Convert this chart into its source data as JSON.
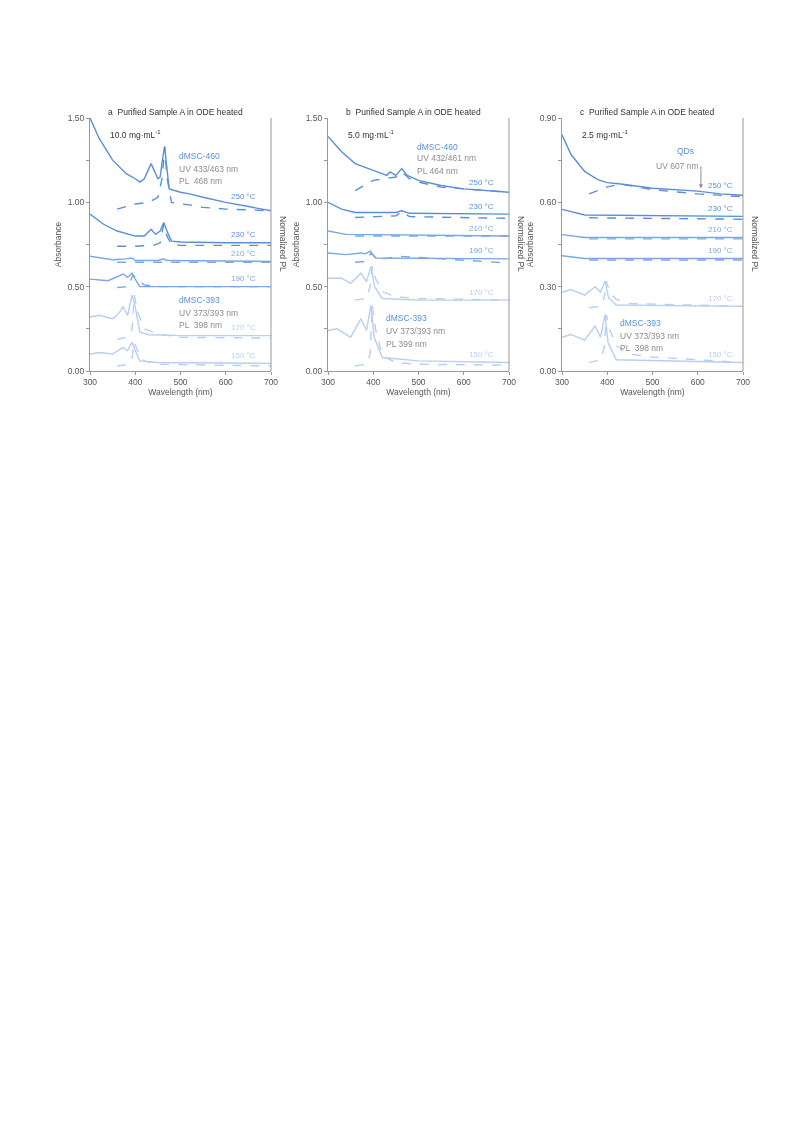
{
  "chart_data": [
    {
      "type": "line",
      "title": "a  Purified Sample A in ODE heated",
      "subtitle": "10.0 mg·mL$^{-1}$",
      "xlabel": "Wavelength (nm)",
      "ylabel": "Absorbance",
      "y2label": "Normalized PL",
      "xlim": [
        300,
        700
      ],
      "xticks": [
        300,
        400,
        500,
        600,
        700
      ],
      "ylim": [
        0,
        1.5
      ],
      "yticks": [
        {
          "value": 0,
          "label": "0.00"
        },
        {
          "value": 0.25,
          "label": null
        },
        {
          "value": 0.5,
          "label": "0.50"
        },
        {
          "value": 0.75,
          "label": null
        },
        {
          "value": 1,
          "label": "1.00"
        },
        {
          "value": 1.25,
          "label": null
        },
        {
          "value": 1.5,
          "label": "1.50"
        }
      ],
      "grid": false,
      "annotations": [
        "dMSC-460",
        "UV 433/463 nm",
        "PL  468 nm",
        "dMSC-393",
        "UV 373/393 nm",
        "PL  398 nm",
        {
          "text": "250 °C",
          "x": 640,
          "y": 0.99
        },
        {
          "text": "230 °C",
          "x": 640,
          "y": 0.76
        },
        {
          "text": "210 °C",
          "x": 640,
          "y": 0.65
        },
        {
          "text": "190 °C",
          "x": 640,
          "y": 0.5
        },
        {
          "text": "170 °C",
          "x": 640,
          "y": 0.21
        },
        {
          "text": "150 °C",
          "x": 640,
          "y": 0.045
        }
      ],
      "series": [
        {
          "color": "#5a8fd8",
          "line_style": "solid",
          "x": [
            300,
            320,
            350,
            380,
            400,
            410,
            420,
            430,
            435,
            440,
            450,
            455,
            460,
            465,
            470,
            475,
            500,
            520,
            550,
            600,
            650,
            700
          ],
          "values": [
            1.5,
            1.38,
            1.25,
            1.17,
            1.14,
            1.12,
            1.14,
            1.2,
            1.23,
            1.2,
            1.14,
            1.15,
            1.25,
            1.33,
            1.2,
            1.08,
            1.06,
            1.05,
            1.03,
            1.0,
            0.975,
            0.95
          ]
        },
        {
          "color": "#5a8fd8",
          "line_style": "dashed",
          "x": [
            360,
            400,
            430,
            450,
            460,
            465,
            470,
            480,
            500,
            520,
            550,
            600,
            650,
            700
          ],
          "values": [
            0.96,
            0.99,
            1.0,
            1.03,
            1.15,
            1.33,
            1.15,
            1.0,
            0.99,
            0.985,
            0.97,
            0.96,
            0.955,
            0.95
          ]
        },
        {
          "color": "#5a8fd8",
          "line_style": "solid",
          "x": [
            300,
            330,
            360,
            400,
            420,
            435,
            445,
            455,
            463,
            470,
            480,
            500,
            600,
            700
          ],
          "values": [
            0.93,
            0.87,
            0.83,
            0.8,
            0.8,
            0.84,
            0.81,
            0.83,
            0.88,
            0.83,
            0.77,
            0.765,
            0.76,
            0.76
          ]
        },
        {
          "color": "#5a8fd8",
          "line_style": "dashed",
          "x": [
            360,
            400,
            440,
            455,
            463,
            470,
            480,
            500,
            700
          ],
          "values": [
            0.74,
            0.74,
            0.745,
            0.76,
            0.87,
            0.8,
            0.75,
            0.745,
            0.745
          ]
        },
        {
          "color": "#7ba7e3",
          "line_style": "solid",
          "x": [
            300,
            350,
            380,
            393,
            400,
            450,
            463,
            470,
            700
          ],
          "values": [
            0.68,
            0.66,
            0.665,
            0.67,
            0.655,
            0.655,
            0.665,
            0.655,
            0.65
          ]
        },
        {
          "color": "#7ba7e3",
          "line_style": "dashed",
          "x": [
            360,
            400,
            700
          ],
          "values": [
            0.645,
            0.645,
            0.645
          ]
        },
        {
          "color": "#7ba7e3",
          "line_style": "solid",
          "x": [
            300,
            340,
            373,
            383,
            393,
            400,
            410,
            450,
            700
          ],
          "values": [
            0.545,
            0.535,
            0.575,
            0.555,
            0.58,
            0.545,
            0.5,
            0.5,
            0.5
          ]
        },
        {
          "color": "#7ba7e3",
          "line_style": "dashed",
          "x": [
            360,
            385,
            395,
            405,
            420,
            460,
            700
          ],
          "values": [
            0.495,
            0.5,
            0.57,
            0.54,
            0.51,
            0.5,
            0.5
          ]
        },
        {
          "color": "#b7cff0",
          "line_style": "solid",
          "x": [
            300,
            320,
            350,
            360,
            373,
            383,
            393,
            400,
            410,
            430,
            500,
            700
          ],
          "values": [
            0.32,
            0.33,
            0.31,
            0.33,
            0.38,
            0.33,
            0.45,
            0.38,
            0.23,
            0.215,
            0.21,
            0.21
          ]
        },
        {
          "color": "#b7cff0",
          "line_style": "dashed",
          "x": [
            360,
            385,
            393,
            398,
            405,
            420,
            450,
            500,
            700
          ],
          "values": [
            0.19,
            0.2,
            0.25,
            0.45,
            0.35,
            0.25,
            0.22,
            0.2,
            0.195
          ]
        },
        {
          "color": "#b7cff0",
          "line_style": "solid",
          "x": [
            300,
            320,
            350,
            373,
            383,
            393,
            400,
            410,
            450,
            700
          ],
          "values": [
            0.1,
            0.11,
            0.1,
            0.14,
            0.12,
            0.17,
            0.12,
            0.06,
            0.05,
            0.045
          ]
        },
        {
          "color": "#b7cff0",
          "line_style": "dashed",
          "x": [
            360,
            385,
            393,
            398,
            405,
            420,
            450,
            700
          ],
          "values": [
            0.03,
            0.04,
            0.08,
            0.17,
            0.12,
            0.06,
            0.04,
            0.03
          ]
        }
      ]
    },
    {
      "type": "line",
      "title": "b  Purified Sample A in ODE heated",
      "subtitle": "5.0 mg·mL$^{-1}$",
      "xlabel": "Wavelength (nm)",
      "ylabel": "Absorbance",
      "y2label": "Normalized PL",
      "xlim": [
        300,
        700
      ],
      "xticks": [
        300,
        400,
        500,
        600,
        700
      ],
      "ylim": [
        0,
        1.5
      ],
      "yticks": [
        {
          "value": 0,
          "label": "0.00"
        },
        {
          "value": 0.25,
          "label": null
        },
        {
          "value": 0.5,
          "label": "0.50"
        },
        {
          "value": 0.75,
          "label": null
        },
        {
          "value": 1,
          "label": "1.00"
        },
        {
          "value": 1.25,
          "label": null
        },
        {
          "value": 1.5,
          "label": "1.50"
        }
      ],
      "grid": false,
      "annotations": [
        "dMSC-460",
        "UV 432/461 nm",
        "PL 464 nm",
        "dMSC-393",
        "UV 373/393 nm",
        "PL 399 nm",
        {
          "text": "250 °C",
          "x": 640,
          "y": 1.07
        },
        {
          "text": "230 °C",
          "x": 640,
          "y": 0.93
        },
        {
          "text": "210 °C",
          "x": 640,
          "y": 0.8
        },
        {
          "text": "190 °C",
          "x": 640,
          "y": 0.665
        },
        {
          "text": "170 °C",
          "x": 640,
          "y": 0.42
        },
        {
          "text": "150 °C",
          "x": 640,
          "y": 0.05
        }
      ],
      "series": [
        {
          "color": "#5a8fd8",
          "line_style": "solid",
          "x": [
            300,
            330,
            360,
            400,
            430,
            437,
            450,
            463,
            475,
            500,
            550,
            600,
            700
          ],
          "values": [
            1.39,
            1.3,
            1.23,
            1.19,
            1.16,
            1.18,
            1.16,
            1.2,
            1.16,
            1.13,
            1.1,
            1.08,
            1.06
          ]
        },
        {
          "color": "#5a8fd8",
          "line_style": "dashed",
          "x": [
            360,
            380,
            400,
            450,
            463,
            480,
            500,
            550,
            600,
            700
          ],
          "values": [
            1.07,
            1.1,
            1.13,
            1.15,
            1.18,
            1.14,
            1.12,
            1.09,
            1.08,
            1.06
          ]
        },
        {
          "color": "#5a8fd8",
          "line_style": "solid",
          "x": [
            300,
            330,
            360,
            450,
            463,
            480,
            700
          ],
          "values": [
            1.0,
            0.96,
            0.94,
            0.94,
            0.95,
            0.935,
            0.93
          ]
        },
        {
          "color": "#5a8fd8",
          "line_style": "dashed",
          "x": [
            360,
            450,
            463,
            480,
            700
          ],
          "values": [
            0.91,
            0.92,
            0.945,
            0.915,
            0.905
          ]
        },
        {
          "color": "#7ba7e3",
          "line_style": "solid",
          "x": [
            300,
            340,
            700
          ],
          "values": [
            0.83,
            0.81,
            0.8
          ]
        },
        {
          "color": "#7ba7e3",
          "line_style": "dashed",
          "x": [
            360,
            700
          ],
          "values": [
            0.8,
            0.8
          ]
        },
        {
          "color": "#7ba7e3",
          "line_style": "solid",
          "x": [
            300,
            340,
            373,
            383,
            393,
            405,
            700
          ],
          "values": [
            0.7,
            0.69,
            0.7,
            0.695,
            0.71,
            0.67,
            0.665
          ]
        },
        {
          "color": "#7ba7e3",
          "line_style": "dashed",
          "x": [
            360,
            385,
            395,
            410,
            460,
            700
          ],
          "values": [
            0.645,
            0.65,
            0.7,
            0.66,
            0.68,
            0.64
          ]
        },
        {
          "color": "#b7cff0",
          "line_style": "solid",
          "x": [
            300,
            330,
            350,
            373,
            385,
            395,
            403,
            420,
            500,
            700
          ],
          "values": [
            0.55,
            0.55,
            0.52,
            0.58,
            0.53,
            0.62,
            0.5,
            0.43,
            0.42,
            0.42
          ]
        },
        {
          "color": "#b7cff0",
          "line_style": "dashed",
          "x": [
            360,
            385,
            393,
            398,
            405,
            420,
            450,
            500,
            700
          ],
          "values": [
            0.42,
            0.43,
            0.5,
            0.62,
            0.55,
            0.47,
            0.44,
            0.43,
            0.42
          ]
        },
        {
          "color": "#b7cff0",
          "line_style": "solid",
          "x": [
            300,
            320,
            350,
            373,
            385,
            395,
            402,
            420,
            500,
            700
          ],
          "values": [
            0.24,
            0.25,
            0.2,
            0.31,
            0.24,
            0.39,
            0.2,
            0.08,
            0.06,
            0.05
          ]
        },
        {
          "color": "#b7cff0",
          "line_style": "dashed",
          "x": [
            360,
            385,
            393,
            398,
            405,
            420,
            450,
            500,
            700
          ],
          "values": [
            0.03,
            0.04,
            0.1,
            0.39,
            0.25,
            0.09,
            0.05,
            0.04,
            0.035
          ]
        }
      ]
    },
    {
      "type": "line",
      "title": "c  Purified Sample A in ODE heated",
      "subtitle": "2.5 mg·mL$^{-1}$",
      "xlabel": "Wavelength (nm)",
      "ylabel": "Absorbance",
      "y2label": "Normalized PL",
      "xlim": [
        300,
        700
      ],
      "xticks": [
        300,
        400,
        500,
        600,
        700
      ],
      "ylim": [
        0,
        0.9
      ],
      "yticks": [
        {
          "value": 0,
          "label": "0.00"
        },
        {
          "value": 0.15,
          "label": null
        },
        {
          "value": 0.3,
          "label": "0.30"
        },
        {
          "value": 0.45,
          "label": null
        },
        {
          "value": 0.6,
          "label": "0.60"
        },
        {
          "value": 0.75,
          "label": null
        },
        {
          "value": 0.9,
          "label": "0.90"
        }
      ],
      "grid": false,
      "annotations": [
        "QDs",
        "dMSC-393",
        "UV 373/393 nm",
        "PL  398 nm",
        {
          "text": "250 °C",
          "x": 650,
          "y": 0.63
        },
        {
          "text": "230 °C",
          "x": 650,
          "y": 0.55
        },
        {
          "text": "210 °C",
          "x": 650,
          "y": 0.475
        },
        {
          "text": "190 °C",
          "x": 650,
          "y": 0.4
        },
        {
          "text": "170 °C",
          "x": 650,
          "y": 0.23
        },
        {
          "text": "150 °C",
          "x": 650,
          "y": 0.03
        },
        {
          "text": "UV 607 nm",
          "x": 607,
          "y": 0.65
        }
      ],
      "series": [
        {
          "color": "#5a8fd8",
          "line_style": "solid",
          "x": [
            300,
            320,
            350,
            380,
            400,
            430,
            500,
            600,
            650,
            700
          ],
          "values": [
            0.84,
            0.77,
            0.71,
            0.68,
            0.67,
            0.665,
            0.65,
            0.64,
            0.63,
            0.625
          ]
        },
        {
          "color": "#5a8fd8",
          "line_style": "dashed",
          "x": [
            360,
            400,
            430,
            500,
            600,
            700
          ],
          "values": [
            0.63,
            0.655,
            0.665,
            0.645,
            0.63,
            0.62
          ]
        },
        {
          "color": "#5a8fd8",
          "line_style": "solid",
          "x": [
            300,
            350,
            700
          ],
          "values": [
            0.575,
            0.555,
            0.55
          ]
        },
        {
          "color": "#5a8fd8",
          "line_style": "dashed",
          "x": [
            360,
            700
          ],
          "values": [
            0.545,
            0.54
          ]
        },
        {
          "color": "#7ba7e3",
          "line_style": "solid",
          "x": [
            300,
            350,
            700
          ],
          "values": [
            0.485,
            0.475,
            0.475
          ]
        },
        {
          "color": "#7ba7e3",
          "line_style": "dashed",
          "x": [
            360,
            700
          ],
          "values": [
            0.47,
            0.47
          ]
        },
        {
          "color": "#7ba7e3",
          "line_style": "solid",
          "x": [
            300,
            350,
            700
          ],
          "values": [
            0.41,
            0.4,
            0.4
          ]
        },
        {
          "color": "#7ba7e3",
          "line_style": "dashed",
          "x": [
            360,
            700
          ],
          "values": [
            0.395,
            0.395
          ]
        },
        {
          "color": "#b7cff0",
          "line_style": "solid",
          "x": [
            300,
            320,
            350,
            373,
            385,
            395,
            403,
            420,
            700
          ],
          "values": [
            0.28,
            0.29,
            0.27,
            0.3,
            0.28,
            0.32,
            0.26,
            0.235,
            0.23
          ]
        },
        {
          "color": "#b7cff0",
          "line_style": "dashed",
          "x": [
            360,
            385,
            393,
            398,
            405,
            420,
            450,
            700
          ],
          "values": [
            0.225,
            0.23,
            0.26,
            0.32,
            0.28,
            0.255,
            0.24,
            0.23
          ]
        },
        {
          "color": "#b7cff0",
          "line_style": "solid",
          "x": [
            300,
            320,
            350,
            373,
            385,
            395,
            402,
            420,
            700
          ],
          "values": [
            0.12,
            0.13,
            0.11,
            0.16,
            0.12,
            0.2,
            0.1,
            0.04,
            0.03
          ]
        },
        {
          "color": "#b7cff0",
          "line_style": "dashed",
          "x": [
            360,
            385,
            393,
            398,
            405,
            420,
            450,
            500,
            700
          ],
          "values": [
            0.03,
            0.04,
            0.08,
            0.2,
            0.15,
            0.09,
            0.06,
            0.05,
            0.03
          ]
        }
      ]
    }
  ]
}
